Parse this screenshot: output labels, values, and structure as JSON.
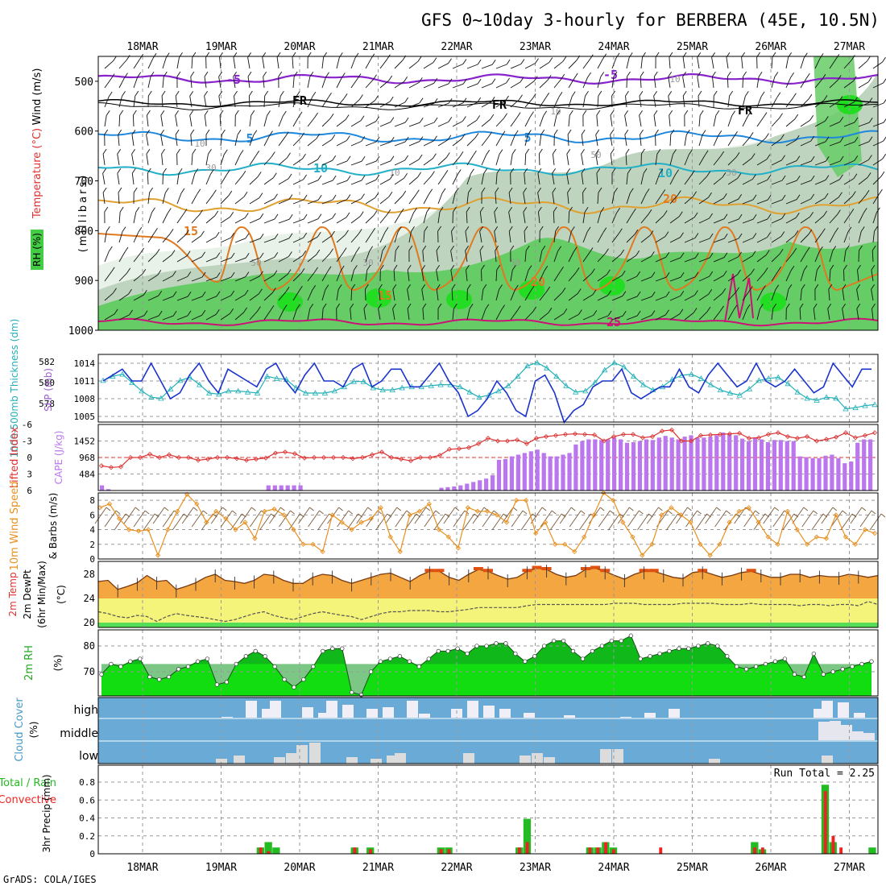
{
  "title": "GFS 0~10day 3-hourly for BERBERA (45E, 10.5N)",
  "footer": "GrADS: COLA/IGES",
  "dates": [
    "18MAR",
    "19MAR",
    "20MAR",
    "21MAR",
    "22MAR",
    "23MAR",
    "24MAR",
    "25MAR",
    "26MAR",
    "27MAR"
  ],
  "colors": {
    "rh_light": "#e8f2e8",
    "rh_mid": "#bfd4bf",
    "rh_dark": "#9ab09a",
    "rh_green": "#66cc66",
    "rh_bright": "#22dd22",
    "sky": "#6aaad6",
    "cape_bar": "#bb77ee",
    "li_line": "#dd3333",
    "slp": "#1a33cc",
    "thk": "#22b0b8",
    "wind": "#e89020",
    "rh2m": "#11dd11",
    "precip_total": "#22bb22",
    "precip_conv": "#ee2222",
    "temp_fill": "#f4a640",
    "dew_fill": "#f4f47a"
  },
  "panels": {
    "upper": {
      "ylabels": {
        "rh": "RH (%)",
        "temp": "Temperature (°C)",
        "wind": "Wind (m/s)",
        "units": "(millibars)"
      },
      "pressure_ticks": [
        "500",
        "600",
        "700",
        "800",
        "900",
        "1000"
      ],
      "isotherm_labels": [
        "-5",
        "-5",
        "FR",
        "FR",
        "FR",
        "5",
        "5",
        "10",
        "10",
        "15",
        "15",
        "20",
        "20",
        "25"
      ],
      "rh_labels": [
        "10",
        "10",
        "30",
        "30",
        "50",
        "50",
        "10",
        "10",
        "50",
        "50"
      ]
    },
    "slp": {
      "ylabel_thk": "1000-500mb Thickness (dm)",
      "ylabel_slp": "SLP (mb)",
      "thk_ticks": [
        "582",
        "580",
        "578"
      ],
      "slp_ticks": [
        "1014",
        "1011",
        "1008",
        "1005"
      ]
    },
    "cape": {
      "ylabel_li": "Lifted Index",
      "ylabel_cape": "CAPE (J/kg)",
      "li_ticks": [
        "-6",
        "-3",
        "0",
        "3",
        "6"
      ],
      "cape_ticks": [
        "1452",
        "968",
        "484"
      ]
    },
    "wind10": {
      "ylabel_speed": "10m Wind Speed",
      "ylabel_barbs": "& Barbs (m/s)",
      "ticks": [
        "0",
        "2",
        "4",
        "6",
        "8"
      ]
    },
    "temp2m": {
      "ylabel1": "2m Temp",
      "ylabel2": "2m DewPt",
      "ylabel3": "(6hr Min/Max)",
      "ylabel_units": "(°C)",
      "ticks": [
        "20",
        "24",
        "28"
      ]
    },
    "rh2m": {
      "ylabel": "2m RH",
      "ylabel_units": "(%)",
      "ticks": [
        "70",
        "80"
      ]
    },
    "cloud": {
      "ylabel": "Cloud Cover",
      "ylabel_units": "(%)",
      "levels": [
        "high",
        "middle",
        "low"
      ]
    },
    "precip": {
      "ylabel_total": "Total / Rain",
      "ylabel_conv": "Convective",
      "ylabel_units": "3hr Precip (mm)",
      "run_total": "Run Total = 2.25",
      "ticks": [
        "0",
        "0.2",
        "0.4",
        "0.6",
        "0.8"
      ]
    }
  },
  "chart_data": [
    {
      "type": "line",
      "title": "SLP and 1000-500mb thickness",
      "x_unit": "3-hourly steps",
      "series": [
        {
          "name": "SLP (mb)",
          "values": [
            1011,
            1012,
            1013,
            1011,
            1011,
            1014,
            1011,
            1008,
            1009,
            1012,
            1014,
            1011,
            1009,
            1013,
            1012,
            1011,
            1010,
            1013,
            1014,
            1011,
            1009,
            1012,
            1014,
            1011,
            1011,
            1010,
            1013,
            1014,
            1010,
            1011,
            1013,
            1013,
            1010,
            1010,
            1012,
            1014,
            1011,
            1009,
            1005,
            1006,
            1008,
            1011,
            1009,
            1006,
            1005,
            1011,
            1012,
            1009,
            1004,
            1006,
            1007,
            1010,
            1011,
            1011,
            1013,
            1009,
            1008,
            1009,
            1010,
            1010,
            1013,
            1010,
            1009,
            1012,
            1014,
            1012,
            1010,
            1011,
            1014,
            1011,
            1010,
            1011,
            1013,
            1011,
            1009,
            1010,
            1014,
            1012,
            1010,
            1013,
            1013
          ]
        },
        {
          "name": "Thickness (dm)",
          "values": [
            580.2,
            580.6,
            580.8,
            580.0,
            579.2,
            578.6,
            578.5,
            579.4,
            580.2,
            580.5,
            579.8,
            579.0,
            578.9,
            579.2,
            579.2,
            579.1,
            579.0,
            580.6,
            580.4,
            580.3,
            579.5,
            579.0,
            579.0,
            579.0,
            579.2,
            579.6,
            580.1,
            580.1,
            579.5,
            579.3,
            579.3,
            579.5,
            579.6,
            579.6,
            579.7,
            579.8,
            579.8,
            579.6,
            579.1,
            578.6,
            578.8,
            579.2,
            579.7,
            580.6,
            581.6,
            581.9,
            581.4,
            580.6,
            579.7,
            579.1,
            579.2,
            580.0,
            581.2,
            581.9,
            581.5,
            580.6,
            579.8,
            579.3,
            579.6,
            580.3,
            580.7,
            580.8,
            580.4,
            579.8,
            579.3,
            579.0,
            578.8,
            579.4,
            580.2,
            580.4,
            580.5,
            579.9,
            579.1,
            578.5,
            578.3,
            578.6,
            578.5,
            577.5,
            577.6,
            577.8,
            577.9
          ]
        }
      ]
    },
    {
      "type": "bar",
      "title": "CAPE (J/kg) with Lifted Index",
      "series": [
        {
          "name": "CAPE (J/kg)",
          "values": [
            150,
            40,
            0,
            0,
            0,
            0,
            0,
            0,
            0,
            0,
            0,
            0,
            0,
            0,
            0,
            0,
            0,
            0,
            0,
            0,
            0,
            0,
            0,
            0,
            0,
            0,
            150,
            150,
            150,
            150,
            150,
            150,
            0,
            0,
            0,
            0,
            0,
            0,
            0,
            0,
            0,
            0,
            0,
            0,
            0,
            0,
            0,
            0,
            0,
            0,
            0,
            0,
            0,
            80,
            100,
            120,
            150,
            200,
            250,
            300,
            350,
            450,
            900,
            920,
            1000,
            1050,
            1100,
            1150,
            1200,
            1100,
            1000,
            1000,
            1050,
            1100,
            1350,
            1450,
            1500,
            1500,
            1480,
            1500,
            1550,
            1500,
            1400,
            1420,
            1450,
            1500,
            1480,
            1550,
            1600,
            1550,
            1500,
            1580,
            1620,
            1550,
            1550,
            1580,
            1620,
            1700,
            1650,
            1620,
            1520,
            1450,
            1550,
            1500,
            1420,
            1480,
            1480,
            1450,
            1450,
            1000,
            980,
            950,
            950,
            1020,
            1050,
            950,
            800,
            850,
            1400,
            1500,
            1500
          ]
        },
        {
          "name": "Lifted Index",
          "values": [
            1.5,
            1.8,
            1.7,
            0,
            0,
            -0.6,
            0,
            -0.5,
            0,
            0,
            0.5,
            0.3,
            0,
            0,
            0.2,
            0.5,
            0.3,
            0.1,
            -0.8,
            -1,
            -0.7,
            0.1,
            0,
            0,
            0,
            0,
            0.2,
            0,
            -0.5,
            -1,
            0,
            0.3,
            0.6,
            0,
            0,
            -0.4,
            -1.5,
            -1.6,
            -1.8,
            -2.5,
            -3.5,
            -3,
            -3,
            -3.2,
            -2.5,
            -3.5,
            -3.8,
            -4,
            -4.2,
            -4.3,
            -4.2,
            -4.1,
            -3,
            -3.8,
            -4.2,
            -4.2,
            -3.6,
            -3.8,
            -4.8,
            -5.0,
            -3,
            -3,
            -4.0,
            -4.1,
            -4.2,
            -4.3,
            -4.4,
            -3.5,
            -3.6,
            -4.2,
            -4.5,
            -3.8,
            -3.5,
            -3.8,
            -3.0,
            -3.3,
            -3.7,
            -4.5,
            -3.6,
            -4.0,
            -4.5
          ]
        }
      ]
    },
    {
      "type": "line",
      "title": "10m Wind Speed (m/s)",
      "series": [
        {
          "name": "Speed",
          "values": [
            7.0,
            7.5,
            5.5,
            4.0,
            3.8,
            4.0,
            0.5,
            4.0,
            6.5,
            8.8,
            7.5,
            5.0,
            6.5,
            5.5,
            4.0,
            5.0,
            2.8,
            6.5,
            6.8,
            6.0,
            4.0,
            2.0,
            2.0,
            1.0,
            6.0,
            5.0,
            4.0,
            5.0,
            5.5,
            7.0,
            3.0,
            1.0,
            6.0,
            6.5,
            7.5,
            4.0,
            3.0,
            1.5,
            7.0,
            6.5,
            6.5,
            6.0,
            5.0,
            8.0,
            8.0,
            3.5,
            5.0,
            2.0,
            2.0,
            1.0,
            3.0,
            6.0,
            9.0,
            8.0,
            5.0,
            3.0,
            0.5,
            2.0,
            6.0,
            7.0,
            6.0,
            5.0,
            2.0,
            0.5,
            2.0,
            5.0,
            6.5,
            7.0,
            5.0,
            3.0,
            2.0,
            6.5,
            4.0,
            2.0,
            3.0,
            2.8,
            6.0,
            3.0,
            2.0,
            4.0,
            3.5
          ]
        }
      ]
    },
    {
      "type": "area",
      "title": "2m Temp and DewPt (°C)",
      "series": [
        {
          "name": "2m Temp",
          "values": [
            26.8,
            27.0,
            25.5,
            26.0,
            26.6,
            27.8,
            26.8,
            27.0,
            25.5,
            26.0,
            26.6,
            27.5,
            28.0,
            27.0,
            26.8,
            26.5,
            27.0,
            28.0,
            27.8,
            27.0,
            26.5,
            26.5,
            27.5,
            28.0,
            27.8,
            27.0,
            26.5,
            27.0,
            27.5,
            28.0,
            28.2,
            27.5,
            26.8,
            27.8,
            28.5,
            28.5,
            27.5,
            27.0,
            28.0,
            28.8,
            28.5,
            27.8,
            27.2,
            27.5,
            28.5,
            29.0,
            28.8,
            28.0,
            27.5,
            27.8,
            28.8,
            29.0,
            28.5,
            27.8,
            27.2,
            28.0,
            28.5,
            28.5,
            28.0,
            27.5,
            27.3,
            28.3,
            28.5,
            28.0,
            27.5,
            27.8,
            28.3,
            28.5,
            28.0,
            27.5,
            27.5,
            28.0,
            28.0,
            27.5,
            27.8,
            27.6,
            27.6,
            28.0,
            27.8,
            27.5,
            27.8
          ]
        },
        {
          "name": "2m DewPt",
          "values": [
            21.8,
            21.5,
            21.0,
            20.8,
            21.2,
            21.0,
            20.2,
            21.0,
            21.5,
            21.2,
            21.0,
            20.8,
            20.5,
            20.2,
            20.5,
            21.0,
            21.5,
            21.8,
            21.2,
            20.8,
            20.5,
            21.0,
            21.5,
            21.8,
            21.5,
            21.2,
            21.0,
            20.5,
            21.0,
            21.5,
            21.8,
            21.8,
            22.0,
            22.0,
            22.0,
            21.8,
            21.8,
            22.0,
            22.2,
            22.5,
            22.5,
            22.5,
            22.5,
            22.5,
            22.8,
            23.0,
            23.0,
            23.0,
            23.0,
            23.0,
            23.0,
            23.0,
            23.0,
            23.2,
            23.2,
            23.2,
            23.0,
            23.0,
            23.0,
            23.0,
            23.2,
            23.2,
            23.2,
            23.2,
            23.0,
            23.0,
            23.0,
            23.2,
            23.0,
            23.0,
            23.0,
            23.0,
            22.8,
            23.0,
            23.0,
            22.8,
            23.0,
            23.0,
            22.8,
            23.5,
            23.0
          ]
        }
      ]
    },
    {
      "type": "area",
      "title": "2m RH (%)",
      "series": [
        {
          "name": "2m RH",
          "values": [
            69,
            73,
            72,
            74,
            75,
            68,
            67,
            68,
            71,
            72,
            74,
            75,
            65,
            66,
            73,
            76,
            78,
            76,
            72,
            67,
            64,
            67,
            72,
            78,
            79,
            79,
            62,
            61,
            70,
            74,
            75,
            76,
            74,
            72,
            75,
            78,
            78,
            79,
            77,
            80,
            80,
            81,
            81,
            77,
            74,
            76,
            80,
            82,
            82,
            78,
            75,
            78,
            80,
            82,
            82,
            84,
            75,
            76,
            77,
            78,
            79,
            79,
            80,
            81,
            80,
            76,
            72,
            71,
            72,
            73,
            74,
            75,
            69,
            68,
            77,
            69,
            70,
            71,
            72,
            73,
            74
          ]
        }
      ]
    },
    {
      "type": "bar",
      "title": "3hr Precip (mm)",
      "series": [
        {
          "name": "Total / Rain",
          "values": [
            0,
            0,
            0,
            0,
            0,
            0,
            0,
            0,
            0,
            0,
            0,
            0,
            0,
            0,
            0,
            0,
            0,
            0,
            0,
            0,
            0.07,
            0.13,
            0.07,
            0,
            0,
            0,
            0,
            0,
            0,
            0,
            0,
            0,
            0.07,
            0,
            0.07,
            0,
            0,
            0,
            0,
            0,
            0,
            0,
            0,
            0.07,
            0.07,
            0,
            0,
            0,
            0,
            0,
            0,
            0,
            0,
            0.07,
            0.39,
            0,
            0,
            0,
            0,
            0,
            0,
            0,
            0.07,
            0.07,
            0.13,
            0.07,
            0,
            0,
            0,
            0,
            0,
            0,
            0,
            0,
            0,
            0,
            0,
            0,
            0,
            0,
            0,
            0,
            0,
            0.13,
            0.05,
            0,
            0,
            0,
            0,
            0,
            0,
            0,
            0.77,
            0.13,
            0,
            0,
            0,
            0,
            0.07
          ]
        },
        {
          "name": "Convective",
          "values": [
            0,
            0,
            0,
            0,
            0,
            0,
            0,
            0,
            0,
            0,
            0,
            0,
            0,
            0,
            0,
            0,
            0,
            0,
            0,
            0,
            0.07,
            0.03,
            0,
            0,
            0,
            0,
            0,
            0,
            0,
            0,
            0,
            0,
            0.07,
            0,
            0.05,
            0,
            0,
            0,
            0,
            0,
            0,
            0,
            0,
            0.05,
            0.05,
            0,
            0,
            0,
            0,
            0,
            0,
            0,
            0,
            0.07,
            0.13,
            0,
            0,
            0,
            0,
            0,
            0,
            0,
            0.07,
            0.07,
            0.13,
            0.05,
            0,
            0,
            0,
            0,
            0,
            0.07,
            0,
            0,
            0,
            0,
            0,
            0,
            0,
            0,
            0,
            0,
            0,
            0.07,
            0.07,
            0,
            0,
            0,
            0,
            0,
            0,
            0,
            0.7,
            0.2,
            0.07,
            0,
            0,
            0,
            0
          ]
        }
      ]
    }
  ]
}
